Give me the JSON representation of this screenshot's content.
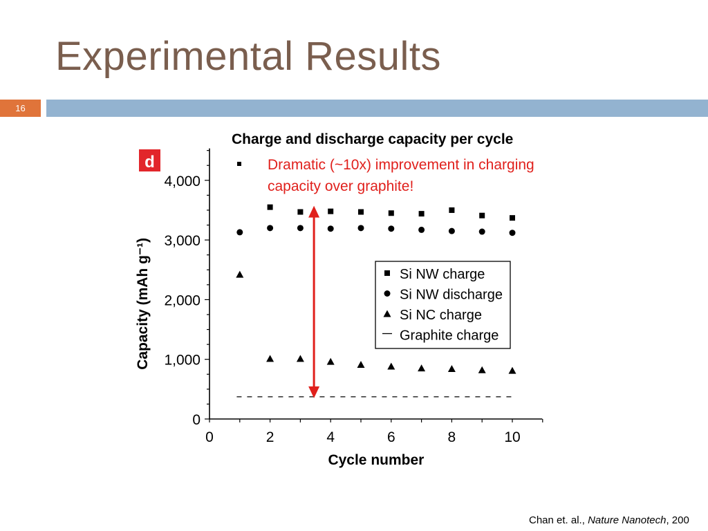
{
  "slide": {
    "title": "Experimental Results",
    "slide_number": "16",
    "subtitle": "Charge and discharge capacity per cycle",
    "bullet": "Dramatic (~10x) improvement in charging capacity over graphite!",
    "citation_authors": "Chan et. al., ",
    "citation_journal": "Nature Nanotech",
    "citation_year": ", 200"
  },
  "colors": {
    "title": "#7a5e4e",
    "accent_orange": "#e0743a",
    "header_bar": "#93b3d0",
    "highlight_red": "#e0201c",
    "panel_label_bg": "#e2262b"
  },
  "chart_data": {
    "type": "scatter",
    "panel_label": "d",
    "xlabel": "Cycle number",
    "ylabel": "Capacity (mAh g⁻¹)",
    "xlim": [
      0,
      11
    ],
    "ylim": [
      0,
      4500
    ],
    "x_ticks": [
      0,
      2,
      4,
      6,
      8,
      10
    ],
    "x_tick_labels": [
      "0",
      "2",
      "4",
      "6",
      "8",
      "10"
    ],
    "y_ticks": [
      0,
      1000,
      2000,
      3000,
      4000
    ],
    "y_tick_labels": [
      "0",
      "1,000",
      "2,000",
      "3,000",
      "4,000"
    ],
    "grid": false,
    "legend_position": "center-right",
    "series": [
      {
        "name": "Si NW charge",
        "marker": "square",
        "x": [
          2,
          3,
          4,
          5,
          6,
          7,
          8,
          9,
          10
        ],
        "y": [
          3550,
          3470,
          3480,
          3470,
          3450,
          3440,
          3500,
          3410,
          3370
        ]
      },
      {
        "name": "Si NW discharge",
        "marker": "circle",
        "x": [
          1,
          2,
          3,
          4,
          5,
          6,
          7,
          8,
          9,
          10
        ],
        "y": [
          3130,
          3200,
          3200,
          3190,
          3200,
          3190,
          3170,
          3150,
          3140,
          3120
        ]
      },
      {
        "name": "Si NC charge",
        "marker": "triangle",
        "x": [
          1,
          2,
          3,
          4,
          5,
          6,
          7,
          8,
          9,
          10
        ],
        "y": [
          2420,
          1010,
          1010,
          960,
          910,
          880,
          850,
          840,
          820,
          810
        ]
      },
      {
        "name": "Graphite charge",
        "marker": "line",
        "x": [
          0.9,
          10.05
        ],
        "y": [
          372,
          372
        ]
      }
    ],
    "annotation": {
      "type": "double-arrow",
      "x": 3.45,
      "y_from": 372,
      "y_to": 3550
    }
  }
}
